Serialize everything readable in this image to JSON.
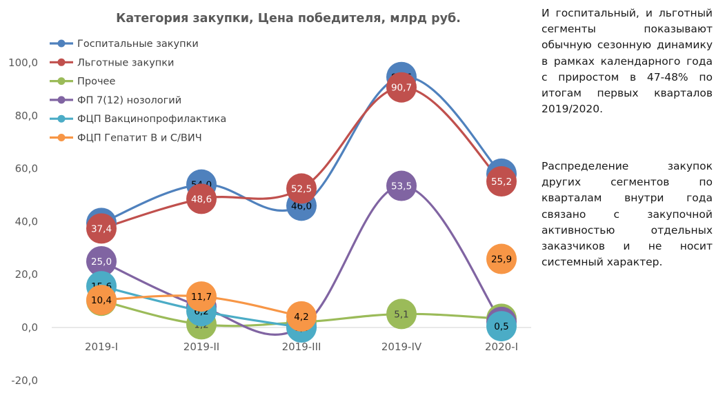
{
  "chart_data": {
    "type": "line",
    "title": "Категория закупки, Цена победителя, млрд руб.",
    "xlabel": "",
    "ylabel": "",
    "categories": [
      "2019-I",
      "2019-II",
      "2019-III",
      "2019-IV",
      "2020-I"
    ],
    "ylim": [
      -20,
      100
    ],
    "yticks": [
      100,
      80,
      60,
      40,
      20,
      0,
      -20
    ],
    "ytick_labels": [
      "100,0",
      "80,0",
      "60,0",
      "40,0",
      "20,0",
      "0,0",
      "-20,0"
    ],
    "grid": false,
    "smooth": true,
    "legend_position": "top-left",
    "series": [
      {
        "name": "Госпитальные закупки",
        "color": "#4F81BD",
        "label_color": "#000000",
        "values": [
          39.5,
          54.0,
          46.0,
          94.6,
          58.1
        ],
        "labels": [
          "39,5",
          "54,0",
          "46,0",
          "94,6",
          "58,1"
        ]
      },
      {
        "name": "Льготные закупки",
        "color": "#C0504D",
        "label_color": "#ffffff",
        "values": [
          37.4,
          48.6,
          52.5,
          90.7,
          55.2
        ],
        "labels": [
          "37,4",
          "48,6",
          "52,5",
          "90,7",
          "55,2"
        ]
      },
      {
        "name": "Прочее",
        "color": "#9BBB59",
        "label_color": "#404040",
        "values": [
          10.1,
          1.2,
          2.0,
          5.1,
          3.3
        ],
        "labels": [
          "10,1",
          "1,2",
          "2,0",
          "5,1",
          "3,3"
        ]
      },
      {
        "name": "ФП 7(12) нозологий",
        "color": "#8064A2",
        "label_color": "#ffffff",
        "values": [
          25.0,
          7.8,
          0.2,
          53.5,
          2.1
        ],
        "labels": [
          "25,0",
          "7,8",
          "0,2",
          "53,5",
          "2,1"
        ]
      },
      {
        "name": "ФЦП Вакцинопрофилактика",
        "color": "#4BACC6",
        "label_color": "#000000",
        "values": [
          15.6,
          6.2,
          0.0,
          null,
          0.5
        ],
        "labels": [
          "15,6",
          "6,2",
          "0,0",
          null,
          "0,5"
        ]
      },
      {
        "name": "ФЦП Гепатит В и С/ВИЧ",
        "color": "#F79646",
        "label_color": "#000000",
        "values": [
          10.4,
          11.7,
          4.2,
          null,
          25.9
        ],
        "labels": [
          "10,4",
          "11,7",
          "4,2",
          null,
          "25,9"
        ]
      }
    ]
  },
  "commentary": {
    "paragraph1": "И госпитальный, и льготный сегменты показывают обычную сезонную динамику в рамках календарного года с приростом в 47-48% по итогам первых кварталов 2019/2020.",
    "paragraph2": "Распределение закупок других сегментов по кварталам внутри года связано с закупочной активностью отдельных заказчиков и не носит системный характер."
  }
}
